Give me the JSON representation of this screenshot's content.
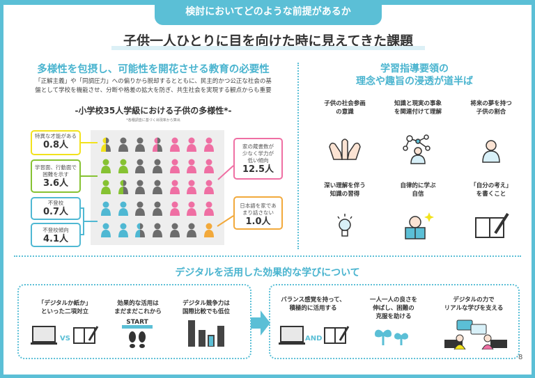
{
  "header": {
    "tab": "検討においてどのような前提があるか",
    "title": "子供一人ひとりに目を向けた時に見えてきた課題"
  },
  "left": {
    "heading": "多様性を包摂し、可能性を開花させる教育の必要性",
    "body": [
      "「正解主義」や「同調圧力」への偏りから脱却するとともに、民主的かつ公正な社会の基",
      "盤として学校を機能させ、分断や格差の拡大を防ぎ、共生社会を実現する観点からも重要"
    ],
    "chart_title": "-小学校35人学級における子供の多様性*-",
    "chart_note": "*各種調査に基づく出現率から算出",
    "callouts": [
      {
        "label": "特異な才能がある",
        "value": "0.8人",
        "color": "#f2e21c"
      },
      {
        "label": "学習面、行動面で困難を示す",
        "value": "3.6人",
        "color": "#86c232"
      },
      {
        "label": "不登校",
        "value": "0.7人",
        "color": "#4fb8d3"
      },
      {
        "label": "不登校傾向",
        "value": "4.1人",
        "color": "#4fb8d3"
      },
      {
        "label": "家の蔵書数が少なく学力が低い傾向",
        "value": "12.5人",
        "color": "#ef6fa3"
      },
      {
        "label": "日本語を家であまり話さない",
        "value": "1.0人",
        "color": "#f2a93b"
      }
    ],
    "grid": [
      [
        "Yh",
        "G",
        "G",
        "Ph",
        "P",
        "P",
        "P"
      ],
      [
        "L",
        "L",
        "G",
        "G",
        "P",
        "P",
        "P"
      ],
      [
        "L",
        "Lh",
        "G",
        "G",
        "P",
        "P",
        "P"
      ],
      [
        "B",
        "B",
        "G",
        "G",
        "P",
        "P",
        "P"
      ],
      [
        "B",
        "B",
        "Bh",
        "G",
        "G",
        "G",
        "O"
      ]
    ],
    "colors": {
      "Y": "#f2e21c",
      "G": "#6d6d6d",
      "P": "#ef6fa3",
      "L": "#86c232",
      "B": "#4fb8d3",
      "O": "#f2a93b"
    }
  },
  "right": {
    "heading": [
      "学習指導要領の",
      "理念や趣旨の浸透が道半ば"
    ],
    "items": [
      {
        "l1": "子供の社会参画",
        "l2": "の意識",
        "icon": "hands-icon"
      },
      {
        "l1": "知識と現実の事象",
        "l2": "を関連付けて理解",
        "icon": "network-person-icon"
      },
      {
        "l1": "将来の夢を持つ",
        "l2": "子供の割合",
        "icon": "person-icon"
      },
      {
        "l1": "深い理解を伴う",
        "l2": "知識の習得",
        "icon": "lightbulb-icon"
      },
      {
        "l1": "自律的に学ぶ",
        "l2": "自信",
        "icon": "reading-person-icon"
      },
      {
        "l1": "「自分の考え」",
        "l2": "を書くこと",
        "icon": "notebook-pen-icon"
      }
    ]
  },
  "bottom": {
    "heading": "デジタルを活用した効果的な学びについて",
    "before": [
      {
        "l1": "「デジタルか紙か」",
        "l2": "といった二項対立",
        "tag": "VS"
      },
      {
        "l1": "効果的な活用は",
        "l2": "まだまだこれから",
        "tag": "START"
      },
      {
        "l1": "デジタル競争力は",
        "l2": "国際比較でも低位"
      }
    ],
    "after": [
      {
        "l1": "バランス感覚を持って、",
        "l2": "積極的に活用する",
        "tag": "AND"
      },
      {
        "l1": "一人一人の良さを",
        "l2": "伸ばし、困難の",
        "l3": "克服を助ける"
      },
      {
        "l1": "デジタルの力で",
        "l2": "リアルな学びを支える"
      }
    ],
    "page": "8"
  }
}
